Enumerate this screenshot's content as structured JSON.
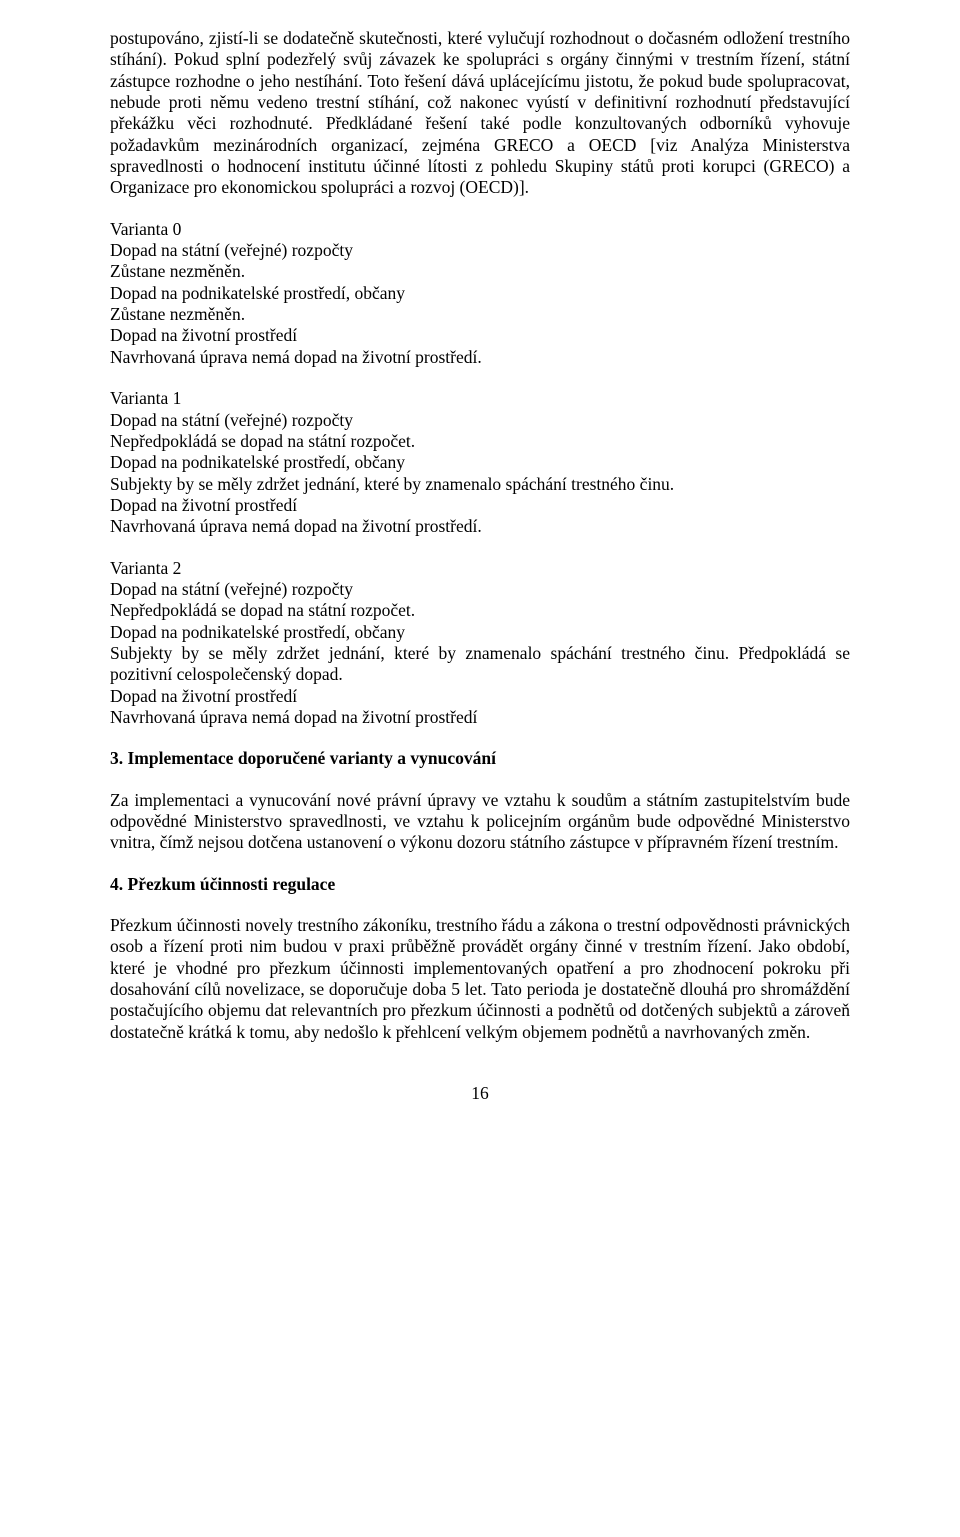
{
  "intro": "postupováno, zjistí-li se dodatečně skutečnosti, které vylučují rozhodnout o dočasném odložení trestního stíhání). Pokud splní podezřelý svůj závazek ke spolupráci s orgány činnými v trestním řízení, státní zástupce rozhodne o jeho nestíhání. Toto řešení dává uplácejícímu jistotu, že pokud bude spolupracovat, nebude proti němu vedeno trestní stíhání, což nakonec vyústí v definitivní rozhodnutí představující překážku věci rozhodnuté. Předkládané řešení také podle konzultovaných odborníků vyhovuje požadavkům mezinárodních organizací, zejména GRECO a OECD [viz Analýza Ministerstva spravedlnosti o hodnocení institutu účinné lítosti z pohledu Skupiny států proti korupci (GRECO) a Organizace pro ekonomickou spolupráci a rozvoj (OECD)].",
  "variant0": {
    "title": "Varianta 0",
    "l1": "Dopad na státní (veřejné) rozpočty",
    "l2": "Zůstane nezměněn.",
    "l3": "Dopad na podnikatelské prostředí, občany",
    "l4": "Zůstane nezměněn.",
    "l5": "Dopad na životní prostředí",
    "l6": "Navrhovaná úprava nemá dopad na životní prostředí."
  },
  "variant1": {
    "title": "Varianta 1",
    "l1": "Dopad na státní (veřejné) rozpočty",
    "l2": "Nepředpokládá se dopad na státní rozpočet.",
    "l3": " Dopad na podnikatelské prostředí, občany",
    "l4": "Subjekty by se měly zdržet jednání, které by znamenalo spáchání trestného činu.",
    "l5": "Dopad na životní prostředí",
    "l6": "Navrhovaná úprava nemá dopad na životní prostředí."
  },
  "variant2": {
    "title": "Varianta 2",
    "l1": "Dopad na státní (veřejné) rozpočty",
    "l2": "Nepředpokládá se dopad na státní rozpočet.",
    "l3": " Dopad na podnikatelské prostředí, občany",
    "l4": "Subjekty by se měly zdržet jednání, které by znamenalo spáchání trestného činu. Předpokládá se pozitivní celospolečenský dopad.",
    "l5": "Dopad na životní prostředí",
    "l6": "Navrhovaná úprava nemá dopad na životní prostředí"
  },
  "section3": {
    "heading": "3. Implementace doporučené varianty a vynucování",
    "body": "Za implementaci a vynucování nové právní úpravy ve vztahu k soudům a státním zastupitelstvím bude odpovědné Ministerstvo spravedlnosti, ve vztahu k policejním orgánům bude odpovědné Ministerstvo vnitra, čímž nejsou dotčena ustanovení o výkonu dozoru státního zástupce v přípravném řízení trestním."
  },
  "section4": {
    "heading": "4. Přezkum účinnosti regulace",
    "body": "Přezkum účinnosti novely trestního zákoníku, trestního řádu a zákona o trestní odpovědnosti právnických osob a řízení proti nim budou v praxi průběžně provádět orgány činné v trestním řízení. Jako období, které je vhodné pro přezkum účinnosti implementovaných opatření a pro zhodnocení pokroku při dosahování cílů novelizace, se doporučuje doba 5 let. Tato perioda je dostatečně dlouhá pro shromáždění postačujícího objemu dat relevantních pro přezkum účinnosti a podnětů od dotčených subjektů a zároveň dostatečně krátká k tomu, aby nedošlo k přehlcení velkým objemem podnětů a navrhovaných změn."
  },
  "pageNumber": "16"
}
